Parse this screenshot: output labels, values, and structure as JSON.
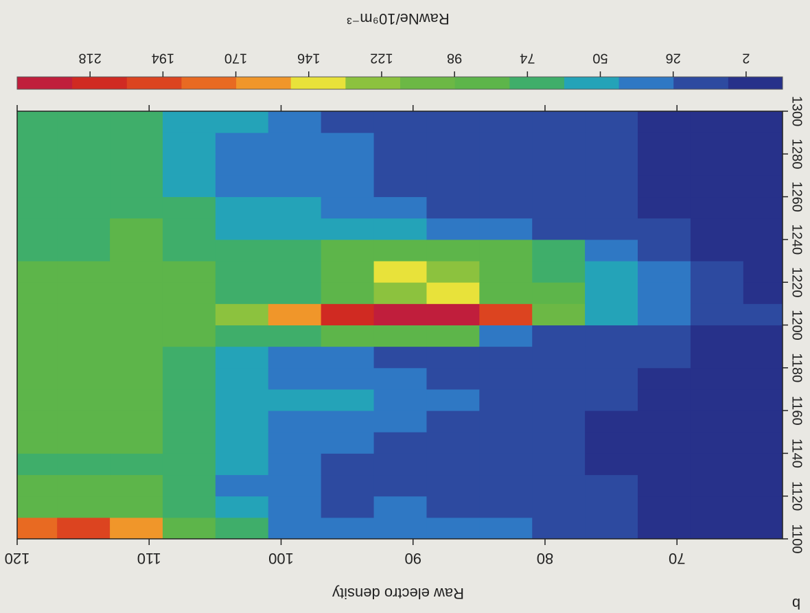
{
  "chart_data": {
    "type": "heatmap",
    "panel": "b",
    "y_label": "Raw electro density",
    "colorbar_label": "RawNe/10⁹m⁻³",
    "xlim": [
      1100,
      1300
    ],
    "xticks": [
      1100,
      1120,
      1140,
      1160,
      1180,
      1200,
      1220,
      1240,
      1260,
      1280,
      1300
    ],
    "ylim": [
      62,
      120
    ],
    "yticks": [
      70,
      80,
      90,
      100,
      110,
      120
    ],
    "clim": [
      -10,
      242
    ],
    "cticks": [
      2,
      26,
      50,
      74,
      98,
      122,
      146,
      170,
      194,
      218
    ],
    "colormap": [
      "#27318a",
      "#2d4aa0",
      "#2f78c4",
      "#24a3b8",
      "#3fae6a",
      "#5db54a",
      "#6cb845",
      "#8cc23e",
      "#e8e23a",
      "#f0962a",
      "#e86a22",
      "#dc4420",
      "#d02a22",
      "#c01e3c"
    ],
    "x_bins": [
      1100,
      1110,
      1120,
      1130,
      1140,
      1150,
      1160,
      1170,
      1180,
      1190,
      1200,
      1210,
      1220,
      1230,
      1240,
      1250,
      1260,
      1270,
      1280,
      1290,
      1300
    ],
    "y_bins": [
      62,
      65,
      69,
      73,
      77,
      81,
      85,
      89,
      93,
      97,
      101,
      105,
      109,
      113,
      117,
      120
    ],
    "z": [
      [
        2,
        2,
        2,
        2,
        2,
        2,
        2,
        2,
        2,
        2,
        8,
        2,
        2,
        2,
        2,
        2,
        2,
        2,
        2,
        2
      ],
      [
        4,
        4,
        4,
        4,
        4,
        4,
        4,
        4,
        4,
        6,
        8,
        25,
        8,
        6,
        4,
        4,
        4,
        4,
        4,
        4
      ],
      [
        6,
        6,
        6,
        6,
        5,
        5,
        5,
        6,
        8,
        10,
        40,
        35,
        30,
        12,
        8,
        6,
        5,
        5,
        5,
        5
      ],
      [
        8,
        8,
        8,
        7,
        7,
        7,
        8,
        8,
        10,
        14,
        60,
        55,
        50,
        30,
        14,
        10,
        8,
        8,
        8,
        8
      ],
      [
        14,
        12,
        12,
        10,
        10,
        12,
        14,
        16,
        18,
        20,
        100,
        80,
        78,
        74,
        20,
        16,
        14,
        12,
        12,
        12
      ],
      [
        26,
        14,
        12,
        12,
        14,
        16,
        20,
        18,
        16,
        40,
        200,
        90,
        86,
        80,
        30,
        20,
        18,
        16,
        14,
        14
      ],
      [
        30,
        22,
        18,
        16,
        20,
        24,
        26,
        22,
        20,
        80,
        226,
        140,
        120,
        84,
        40,
        24,
        20,
        18,
        16,
        16
      ],
      [
        34,
        28,
        22,
        20,
        24,
        28,
        40,
        30,
        24,
        84,
        226,
        130,
        140,
        86,
        50,
        30,
        22,
        20,
        18,
        18
      ],
      [
        30,
        22,
        22,
        24,
        28,
        32,
        50,
        36,
        28,
        80,
        210,
        90,
        84,
        82,
        60,
        40,
        30,
        26,
        26,
        22
      ],
      [
        40,
        30,
        30,
        32,
        36,
        40,
        48,
        40,
        40,
        70,
        160,
        74,
        72,
        70,
        50,
        44,
        36,
        30,
        28,
        28
      ],
      [
        74,
        44,
        40,
        44,
        48,
        50,
        56,
        50,
        50,
        76,
        130,
        78,
        76,
        74,
        56,
        50,
        40,
        40,
        40,
        44
      ],
      [
        80,
        62,
        70,
        66,
        64,
        66,
        68,
        72,
        70,
        80,
        90,
        82,
        80,
        78,
        74,
        62,
        60,
        58,
        56,
        56
      ],
      [
        160,
        82,
        84,
        76,
        80,
        82,
        80,
        84,
        82,
        86,
        90,
        86,
        84,
        82,
        80,
        76,
        74,
        76,
        72,
        74
      ],
      [
        200,
        82,
        84,
        78,
        80,
        80,
        82,
        84,
        80,
        82,
        84,
        86,
        80,
        76,
        74,
        72,
        70,
        72,
        74,
        74
      ],
      [
        180,
        84,
        80,
        74,
        80,
        82,
        84,
        80,
        82,
        84,
        86,
        82,
        84,
        78,
        76,
        74,
        72,
        72,
        74,
        74
      ]
    ]
  }
}
